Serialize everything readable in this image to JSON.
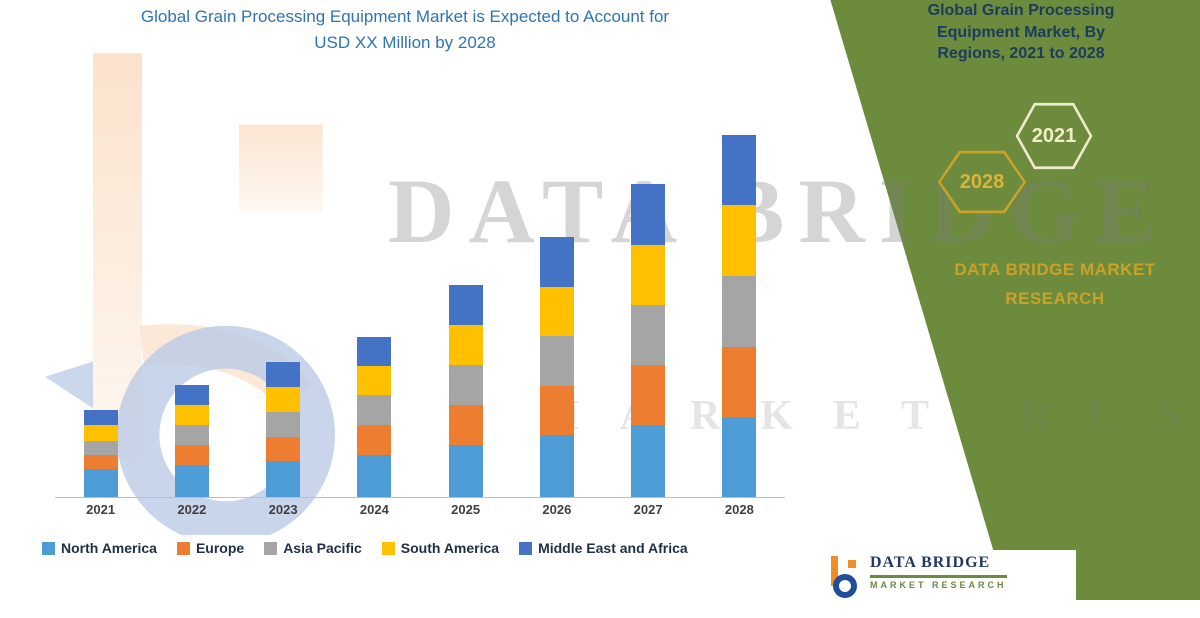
{
  "title": {
    "line1": "Global Grain Processing Equipment Market is Expected to Account for",
    "line2": "USD XX Million by 2028"
  },
  "chart_data": {
    "type": "bar",
    "stacked": true,
    "title": "Global Grain Processing Equipment Market is Expected to Account for USD XX Million by 2028",
    "categories": [
      "2021",
      "2022",
      "2023",
      "2024",
      "2025",
      "2026",
      "2027",
      "2028"
    ],
    "series": [
      {
        "name": "North America",
        "color": "#4E9CD5",
        "values": [
          28,
          32,
          36,
          42,
          52,
          62,
          72,
          80
        ]
      },
      {
        "name": "Europe",
        "color": "#ED7D31",
        "values": [
          14,
          20,
          24,
          30,
          40,
          49,
          60,
          70
        ]
      },
      {
        "name": "Asia Pacific",
        "color": "#A5A5A5",
        "values": [
          14,
          20,
          25,
          30,
          40,
          50,
          60,
          71
        ]
      },
      {
        "name": "South America",
        "color": "#FFC000",
        "values": [
          16,
          20,
          25,
          29,
          40,
          49,
          60,
          71
        ]
      },
      {
        "name": "Middle East and Africa",
        "color": "#4472C4",
        "values": [
          15,
          20,
          25,
          29,
          40,
          50,
          61,
          70
        ]
      }
    ],
    "xlabel": "",
    "ylabel": "",
    "ylim": [
      0,
      400
    ],
    "grid": false,
    "legend_position": "bottom",
    "y_axis_labeled": false
  },
  "side_panel": {
    "heading": "Global Grain Processing Equipment Market, By Regions, 2021 to 2028",
    "hexagon_years": [
      "2021",
      "2028"
    ],
    "brand": "DATA BRIDGE MARKET RESEARCH",
    "colors": {
      "background": "#6C8B3C",
      "accent_gold": "#C9A227"
    }
  },
  "watermark": {
    "line1": "DATA BRIDGE",
    "line2": "MARKET RESEARCH"
  },
  "footer_logo": {
    "brand": "DATA BRIDGE",
    "subtext": "MARKET RESEARCH"
  }
}
